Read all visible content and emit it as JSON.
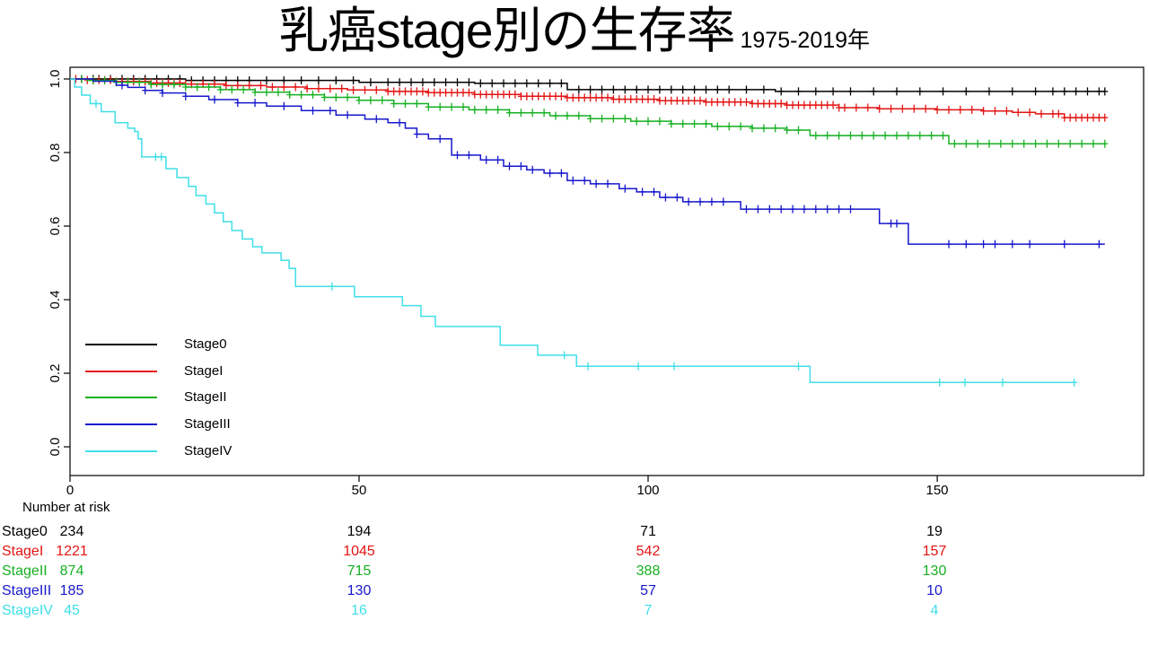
{
  "header": {
    "title": "乳癌stage別の生存率",
    "subtitle": "1975-2019年"
  },
  "chart_data": {
    "type": "line",
    "subtype": "kaplan-meier-survival-step",
    "title": "乳癌stage別の生存率 1975-2019年",
    "xlabel": "",
    "ylabel": "",
    "xlim": [
      0,
      185.7
    ],
    "ylim": [
      0,
      1.0
    ],
    "grid": false,
    "x_ticks": [
      0,
      50,
      100,
      150
    ],
    "y_ticks": [
      1.0,
      0.8,
      0.6,
      0.4,
      0.2,
      0.0
    ],
    "x_tick_labels": [
      "0",
      "50",
      "100",
      "150"
    ],
    "y_tick_labels": [
      "1.0",
      "0.8",
      "0.6",
      "0.4",
      "0.2",
      "0.0"
    ],
    "legend": {
      "position": "inside-bottom-left",
      "entries": [
        "Stage0",
        "StageI",
        "StageII",
        "StageIII",
        "StageIV"
      ]
    },
    "series": [
      {
        "name": "Stage0",
        "color": "#000000",
        "steps": [
          [
            0,
            1.0
          ],
          [
            20,
            0.996
          ],
          [
            50,
            0.991
          ],
          [
            70,
            0.988
          ],
          [
            86,
            0.971
          ],
          [
            122,
            0.966
          ],
          [
            179,
            0.966
          ]
        ],
        "censor_times": [
          2,
          4,
          5,
          7,
          9,
          11,
          13,
          15,
          17,
          19,
          21,
          23,
          25,
          27,
          29,
          31,
          34,
          37,
          40,
          43,
          46,
          49,
          52,
          55,
          57,
          59,
          61,
          63,
          65,
          67,
          69,
          71,
          73,
          75,
          77,
          79,
          81,
          83,
          85,
          88,
          90,
          92,
          94,
          96,
          98,
          100,
          102,
          104,
          106,
          108,
          110,
          112,
          114,
          117,
          120,
          123,
          126,
          129,
          132,
          135,
          139,
          143,
          147,
          151,
          155,
          159,
          163,
          167,
          170,
          172,
          174,
          176,
          178,
          179
        ]
      },
      {
        "name": "StageI",
        "color": "#E41414",
        "steps": [
          [
            0,
            1.0
          ],
          [
            3,
            0.997
          ],
          [
            8,
            0.993
          ],
          [
            14,
            0.989
          ],
          [
            20,
            0.986
          ],
          [
            27,
            0.982
          ],
          [
            34,
            0.978
          ],
          [
            41,
            0.974
          ],
          [
            48,
            0.97
          ],
          [
            55,
            0.966
          ],
          [
            62,
            0.963
          ],
          [
            70,
            0.958
          ],
          [
            78,
            0.953
          ],
          [
            86,
            0.949
          ],
          [
            94,
            0.945
          ],
          [
            102,
            0.941
          ],
          [
            110,
            0.937
          ],
          [
            118,
            0.933
          ],
          [
            124,
            0.929
          ],
          [
            133,
            0.922
          ],
          [
            140,
            0.919
          ],
          [
            150,
            0.916
          ],
          [
            158,
            0.913
          ],
          [
            163,
            0.909
          ],
          [
            167,
            0.905
          ],
          [
            172,
            0.895
          ],
          [
            179,
            0.895
          ]
        ],
        "censor_times": [
          1,
          2,
          3,
          4,
          5,
          6,
          7,
          8,
          9,
          10,
          11,
          12,
          13,
          14,
          15,
          16,
          17,
          18,
          19,
          20,
          21,
          23,
          25,
          27,
          29,
          31,
          33,
          35,
          37,
          39,
          41,
          43,
          45,
          47,
          49,
          51,
          53,
          55,
          56,
          57,
          58,
          59,
          60,
          61,
          62,
          63,
          64,
          65,
          66,
          67,
          68,
          69,
          70,
          71,
          72,
          73,
          74,
          75,
          76,
          77,
          78,
          79,
          80,
          81,
          82,
          83,
          84,
          85,
          86,
          87,
          88,
          89,
          90,
          91,
          92,
          93,
          94,
          95,
          96,
          97,
          98,
          99,
          100,
          101,
          102,
          103,
          104,
          105,
          106,
          107,
          108,
          109,
          110,
          111,
          112,
          113,
          114,
          115,
          116,
          117,
          118,
          119,
          120,
          121,
          122,
          123,
          124,
          125,
          126,
          127,
          128,
          129,
          130,
          131,
          132,
          133,
          134,
          136,
          138,
          140,
          142,
          144,
          146,
          148,
          150,
          152,
          154,
          156,
          158,
          160,
          162,
          164,
          166,
          168,
          170,
          171,
          172,
          173,
          174,
          175,
          176,
          177,
          178,
          179
        ]
      },
      {
        "name": "StageII",
        "color": "#16B022",
        "steps": [
          [
            0,
            1.0
          ],
          [
            3,
            0.996
          ],
          [
            8,
            0.991
          ],
          [
            14,
            0.985
          ],
          [
            20,
            0.978
          ],
          [
            26,
            0.971
          ],
          [
            32,
            0.964
          ],
          [
            38,
            0.957
          ],
          [
            44,
            0.95
          ],
          [
            50,
            0.942
          ],
          [
            56,
            0.933
          ],
          [
            62,
            0.924
          ],
          [
            69,
            0.916
          ],
          [
            76,
            0.908
          ],
          [
            83,
            0.9
          ],
          [
            90,
            0.892
          ],
          [
            97,
            0.885
          ],
          [
            104,
            0.878
          ],
          [
            111,
            0.871
          ],
          [
            118,
            0.866
          ],
          [
            124,
            0.861
          ],
          [
            128,
            0.846
          ],
          [
            152,
            0.824
          ],
          [
            179,
            0.824
          ]
        ],
        "censor_times": [
          2,
          4,
          6,
          8,
          10,
          12,
          14,
          16,
          18,
          20,
          22,
          24,
          26,
          28,
          30,
          32,
          34,
          36,
          38,
          40,
          42,
          44,
          46,
          48,
          50,
          52,
          54,
          56,
          58,
          60,
          62,
          64,
          66,
          68,
          70,
          72,
          74,
          76,
          78,
          80,
          82,
          84,
          86,
          88,
          90,
          92,
          94,
          96,
          98,
          100,
          102,
          104,
          106,
          108,
          110,
          112,
          114,
          116,
          118,
          120,
          122,
          124,
          126,
          129,
          131,
          133,
          135,
          137,
          139,
          141,
          143,
          145,
          147,
          149,
          151,
          153,
          155,
          157,
          159,
          161,
          163,
          165,
          167,
          169,
          171,
          173,
          175,
          177,
          179
        ]
      },
      {
        "name": "StageIII",
        "color": "#1717CD",
        "steps": [
          [
            0,
            1.0
          ],
          [
            4,
            0.994
          ],
          [
            8,
            0.983
          ],
          [
            10,
            0.977
          ],
          [
            13,
            0.969
          ],
          [
            16,
            0.962
          ],
          [
            20,
            0.953
          ],
          [
            24,
            0.944
          ],
          [
            29,
            0.935
          ],
          [
            34,
            0.926
          ],
          [
            40,
            0.914
          ],
          [
            46,
            0.902
          ],
          [
            51,
            0.891
          ],
          [
            55,
            0.881
          ],
          [
            58,
            0.866
          ],
          [
            60,
            0.85
          ],
          [
            62,
            0.837
          ],
          [
            66,
            0.793
          ],
          [
            71,
            0.78
          ],
          [
            75,
            0.763
          ],
          [
            79,
            0.753
          ],
          [
            82,
            0.744
          ],
          [
            86,
            0.724
          ],
          [
            90,
            0.715
          ],
          [
            95,
            0.702
          ],
          [
            98,
            0.693
          ],
          [
            102,
            0.678
          ],
          [
            106,
            0.666
          ],
          [
            116,
            0.646
          ],
          [
            140,
            0.607
          ],
          [
            145,
            0.551
          ],
          [
            179,
            0.551
          ]
        ],
        "censor_times": [
          9,
          13,
          16,
          20,
          25,
          29,
          32,
          37,
          42,
          45,
          48,
          53,
          57,
          60,
          64,
          67,
          69,
          72,
          74,
          76,
          78,
          80,
          83,
          85,
          87,
          89,
          91,
          93,
          96,
          99,
          101,
          103,
          105,
          107,
          109,
          111,
          113,
          117,
          119,
          121,
          123,
          125,
          127,
          129,
          131,
          133,
          135,
          142,
          143,
          152,
          155,
          158,
          160,
          163,
          166,
          172,
          178
        ]
      },
      {
        "name": "StageIV",
        "color": "#3FDFE8",
        "steps": [
          [
            0,
            1.0
          ],
          [
            0.8,
            0.978
          ],
          [
            2,
            0.956
          ],
          [
            3.5,
            0.933
          ],
          [
            5.4,
            0.911
          ],
          [
            7.8,
            0.881
          ],
          [
            10,
            0.866
          ],
          [
            11.2,
            0.857
          ],
          [
            11.8,
            0.837
          ],
          [
            12.4,
            0.788
          ],
          [
            16.6,
            0.756
          ],
          [
            18.5,
            0.732
          ],
          [
            20.5,
            0.708
          ],
          [
            21.8,
            0.683
          ],
          [
            23.5,
            0.66
          ],
          [
            25,
            0.636
          ],
          [
            26.5,
            0.612
          ],
          [
            28,
            0.588
          ],
          [
            29.8,
            0.565
          ],
          [
            31.6,
            0.544
          ],
          [
            33.2,
            0.527
          ],
          [
            36.5,
            0.507
          ],
          [
            37.9,
            0.485
          ],
          [
            39,
            0.436
          ],
          [
            49.2,
            0.408
          ],
          [
            57.5,
            0.384
          ],
          [
            60.7,
            0.355
          ],
          [
            63.2,
            0.327
          ],
          [
            74.4,
            0.276
          ],
          [
            80.9,
            0.249
          ],
          [
            87.6,
            0.219
          ],
          [
            128,
            0.175
          ],
          [
            174,
            0.175
          ]
        ],
        "censor_times": [
          4.5,
          14.8,
          15.8,
          45.3,
          85.5,
          89.6,
          98.3,
          104.5,
          126,
          150.4,
          154.8,
          161.3,
          173.7
        ]
      }
    ]
  },
  "risk_table": {
    "header": "Number at risk",
    "time_points": [
      0,
      50,
      100,
      150
    ],
    "rows": [
      {
        "label": "Stage0",
        "color": "#000000",
        "values": [
          "234",
          "194",
          "71",
          "19"
        ]
      },
      {
        "label": "StageI",
        "color": "#E41414",
        "values": [
          "1221",
          "1045",
          "542",
          "157"
        ]
      },
      {
        "label": "StageII",
        "color": "#16B022",
        "values": [
          "874",
          "715",
          "388",
          "130"
        ]
      },
      {
        "label": "StageIII",
        "color": "#1717CD",
        "values": [
          "185",
          "130",
          "57",
          "10"
        ]
      },
      {
        "label": "StageIV",
        "color": "#3FDFE8",
        "values": [
          "45",
          "16",
          "7",
          "4"
        ]
      }
    ]
  }
}
